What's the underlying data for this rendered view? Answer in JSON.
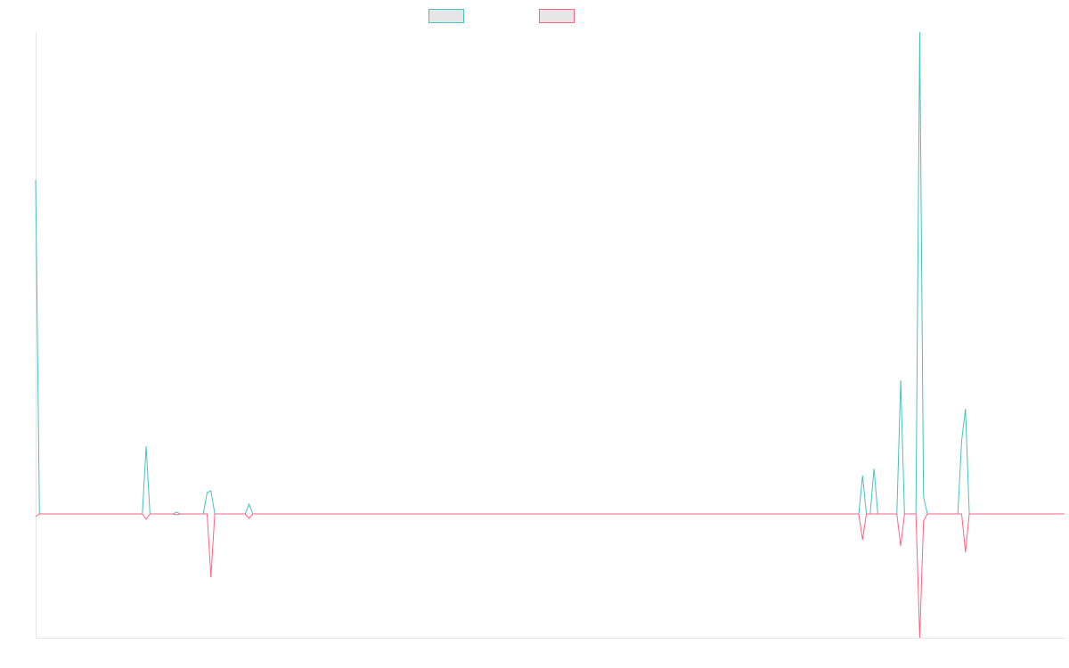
{
  "chart_data": {
    "type": "line",
    "series": [
      {
        "color": "#4bc0c0",
        "values": [
          375,
          0,
          0,
          0,
          0,
          0,
          0,
          0,
          0,
          0,
          0,
          0,
          0,
          0,
          0,
          0,
          0,
          0,
          0,
          0,
          0,
          0,
          0,
          0,
          0,
          0,
          0,
          0,
          0,
          76,
          0,
          0,
          0,
          0,
          0,
          0,
          0,
          2,
          0,
          0,
          0,
          0,
          0,
          0,
          0,
          24,
          26,
          0,
          0,
          0,
          0,
          0,
          0,
          0,
          0,
          0,
          11,
          0,
          0,
          0,
          0,
          0,
          0,
          0,
          0,
          0,
          0,
          0,
          0,
          0,
          0,
          0,
          0,
          0,
          0,
          0,
          0,
          0,
          0,
          0,
          0,
          0,
          0,
          0,
          0,
          0,
          0,
          0,
          0,
          0,
          0,
          0,
          0,
          0,
          0,
          0,
          0,
          0,
          0,
          0,
          0,
          0,
          0,
          0,
          0,
          0,
          0,
          0,
          0,
          0,
          0,
          0,
          0,
          0,
          0,
          0,
          0,
          0,
          0,
          0,
          0,
          0,
          0,
          0,
          0,
          0,
          0,
          0,
          0,
          0,
          0,
          0,
          0,
          0,
          0,
          0,
          0,
          0,
          0,
          0,
          0,
          0,
          0,
          0,
          0,
          0,
          0,
          0,
          0,
          0,
          0,
          0,
          0,
          0,
          0,
          0,
          0,
          0,
          0,
          0,
          0,
          0,
          0,
          0,
          0,
          0,
          0,
          0,
          0,
          0,
          0,
          0,
          0,
          0,
          0,
          0,
          0,
          0,
          0,
          0,
          0,
          0,
          0,
          0,
          0,
          0,
          0,
          0,
          0,
          0,
          0,
          0,
          0,
          0,
          0,
          0,
          0,
          0,
          0,
          0,
          0,
          0,
          0,
          0,
          0,
          0,
          0,
          0,
          0,
          0,
          0,
          0,
          0,
          0,
          0,
          0,
          0,
          43,
          0,
          0,
          51,
          0,
          0,
          0,
          0,
          0,
          0,
          150,
          0,
          0,
          0,
          0,
          541,
          19,
          0,
          0,
          0,
          0,
          0,
          0,
          0,
          0,
          0,
          82,
          118,
          0,
          0,
          0,
          0,
          0,
          0,
          0,
          0,
          0,
          0,
          0,
          0,
          0,
          0,
          0,
          0,
          0,
          0,
          0,
          0,
          0,
          0,
          0,
          0,
          0,
          0
        ]
      },
      {
        "color": "#ff6384",
        "values": [
          -3,
          0,
          0,
          0,
          0,
          0,
          0,
          0,
          0,
          0,
          0,
          0,
          0,
          0,
          0,
          0,
          0,
          0,
          0,
          0,
          0,
          0,
          0,
          0,
          0,
          0,
          0,
          0,
          0,
          -6,
          0,
          0,
          0,
          0,
          0,
          0,
          0,
          -1,
          0,
          0,
          0,
          0,
          0,
          0,
          0,
          0,
          -71,
          0,
          0,
          0,
          0,
          0,
          0,
          0,
          0,
          0,
          -5,
          0,
          0,
          0,
          0,
          0,
          0,
          0,
          0,
          0,
          0,
          0,
          0,
          0,
          0,
          0,
          0,
          0,
          0,
          0,
          0,
          0,
          0,
          0,
          0,
          0,
          0,
          0,
          0,
          0,
          0,
          0,
          0,
          0,
          0,
          0,
          0,
          0,
          0,
          0,
          0,
          0,
          0,
          0,
          0,
          0,
          0,
          0,
          0,
          0,
          0,
          0,
          0,
          0,
          0,
          0,
          0,
          0,
          0,
          0,
          0,
          0,
          0,
          0,
          0,
          0,
          0,
          0,
          0,
          0,
          0,
          0,
          0,
          0,
          0,
          0,
          0,
          0,
          0,
          0,
          0,
          0,
          0,
          0,
          0,
          0,
          0,
          0,
          0,
          0,
          0,
          0,
          0,
          0,
          0,
          0,
          0,
          0,
          0,
          0,
          0,
          0,
          0,
          0,
          0,
          0,
          0,
          0,
          0,
          0,
          0,
          0,
          0,
          0,
          0,
          0,
          0,
          0,
          0,
          0,
          0,
          0,
          0,
          0,
          0,
          0,
          0,
          0,
          0,
          0,
          0,
          0,
          0,
          0,
          0,
          0,
          0,
          0,
          0,
          0,
          0,
          0,
          0,
          0,
          0,
          0,
          0,
          0,
          0,
          0,
          0,
          0,
          0,
          0,
          0,
          0,
          0,
          0,
          0,
          0,
          0,
          -29,
          0,
          0,
          0,
          0,
          0,
          0,
          0,
          0,
          0,
          -36,
          0,
          0,
          0,
          0,
          -139,
          -8,
          0,
          0,
          0,
          0,
          0,
          0,
          0,
          0,
          0,
          0,
          -43,
          0,
          0,
          0,
          0,
          0,
          0,
          0,
          0,
          0,
          0,
          0,
          0,
          0,
          0,
          0,
          0,
          0,
          0,
          0,
          0,
          0,
          0,
          0,
          0,
          0,
          0
        ]
      }
    ],
    "ylim": [
      -139,
      541
    ]
  }
}
